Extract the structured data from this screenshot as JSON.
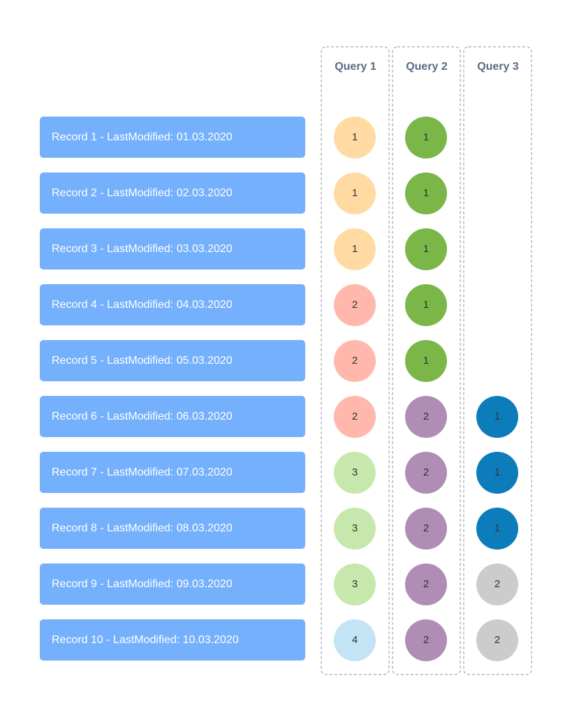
{
  "records": [
    "Record 1 - LastModified: 01.03.2020",
    "Record 2 - LastModified: 02.03.2020",
    "Record 3 - LastModified: 03.03.2020",
    "Record 4 - LastModified: 04.03.2020",
    "Record 5 - LastModified: 05.03.2020",
    "Record 6 - LastModified: 06.03.2020",
    "Record 7 - LastModified: 07.03.2020",
    "Record 8 - LastModified: 08.03.2020",
    "Record 9 - LastModified: 09.03.2020",
    "Record 10 - LastModified: 10.03.2020"
  ],
  "queries": [
    {
      "title": "Query 1",
      "cells": [
        {
          "label": 1,
          "color": "#ffdba3"
        },
        {
          "label": 1,
          "color": "#ffdba3"
        },
        {
          "label": 1,
          "color": "#ffdba3"
        },
        {
          "label": 2,
          "color": "#ffb8ab"
        },
        {
          "label": 2,
          "color": "#ffb8ab"
        },
        {
          "label": 2,
          "color": "#ffb8ab"
        },
        {
          "label": 3,
          "color": "#c7e8ac"
        },
        {
          "label": 3,
          "color": "#c7e8ac"
        },
        {
          "label": 3,
          "color": "#c7e8ac"
        },
        {
          "label": 4,
          "color": "#c2e4f5"
        }
      ]
    },
    {
      "title": "Query 2",
      "cells": [
        {
          "label": 1,
          "color": "#7ab648"
        },
        {
          "label": 1,
          "color": "#7ab648"
        },
        {
          "label": 1,
          "color": "#7ab648"
        },
        {
          "label": 1,
          "color": "#7ab648"
        },
        {
          "label": 1,
          "color": "#7ab648"
        },
        {
          "label": 2,
          "color": "#b08db5"
        },
        {
          "label": 2,
          "color": "#b08db5"
        },
        {
          "label": 2,
          "color": "#b08db5"
        },
        {
          "label": 2,
          "color": "#b08db5"
        },
        {
          "label": 2,
          "color": "#b08db5"
        }
      ]
    },
    {
      "title": "Query 3",
      "cells": [
        null,
        null,
        null,
        null,
        null,
        {
          "label": 1,
          "color": "#0c7cba"
        },
        {
          "label": 1,
          "color": "#0c7cba"
        },
        {
          "label": 1,
          "color": "#0c7cba"
        },
        {
          "label": 2,
          "color": "#cccccc"
        },
        {
          "label": 2,
          "color": "#cccccc"
        }
      ]
    }
  ]
}
